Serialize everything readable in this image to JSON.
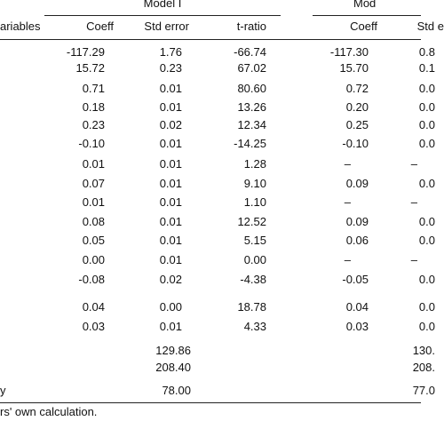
{
  "header": {
    "model_1": "Model I",
    "model_2": "Mod",
    "variables": "ariables",
    "columns": [
      "Coeff",
      "Std error",
      "t-ratio",
      "Coeff",
      "Std e"
    ]
  },
  "table": {
    "rows": [
      [
        "-117.29",
        "1.76",
        "-66.74",
        "-117.30",
        "0.8"
      ],
      [
        "15.72",
        "0.23",
        "67.02",
        "15.70",
        "0.1"
      ],
      [
        "0.71",
        "0.01",
        "80.60",
        "0.72",
        "0.0"
      ],
      [
        "0.18",
        "0.01",
        "13.26",
        "0.20",
        "0.0"
      ],
      [
        "0.23",
        "0.02",
        "12.34",
        "0.25",
        "0.0"
      ],
      [
        "-0.10",
        "0.01",
        "-14.25",
        "-0.10",
        "0.0"
      ],
      [
        "0.01",
        "0.01",
        "1.28",
        "–",
        "–"
      ],
      [
        "0.07",
        "0.01",
        "9.10",
        "0.09",
        "0.0"
      ],
      [
        "0.01",
        "0.01",
        "1.10",
        "–",
        "–"
      ],
      [
        "0.08",
        "0.01",
        "12.52",
        "0.09",
        "0.0"
      ],
      [
        "0.05",
        "0.01",
        "5.15",
        "0.06",
        "0.0"
      ],
      [
        "0.00",
        "0.01",
        "0.00",
        "–",
        "–"
      ],
      [
        "-0.08",
        "0.02",
        "-4.38",
        "-0.05",
        "0.0"
      ],
      [
        "0.04",
        "0.00",
        "18.78",
        "0.04",
        "0.0"
      ],
      [
        "0.03",
        "0.01",
        "4.33",
        "0.03",
        "0.0"
      ]
    ],
    "stats": [
      {
        "label": "",
        "model_1": "129.86",
        "model_2": "130."
      },
      {
        "label": "",
        "model_1": "208.40",
        "model_2": "208."
      },
      {
        "label": "y",
        "model_1": "78.00",
        "model_2": "77.0"
      }
    ]
  },
  "footnote": "rs' own calculation."
}
